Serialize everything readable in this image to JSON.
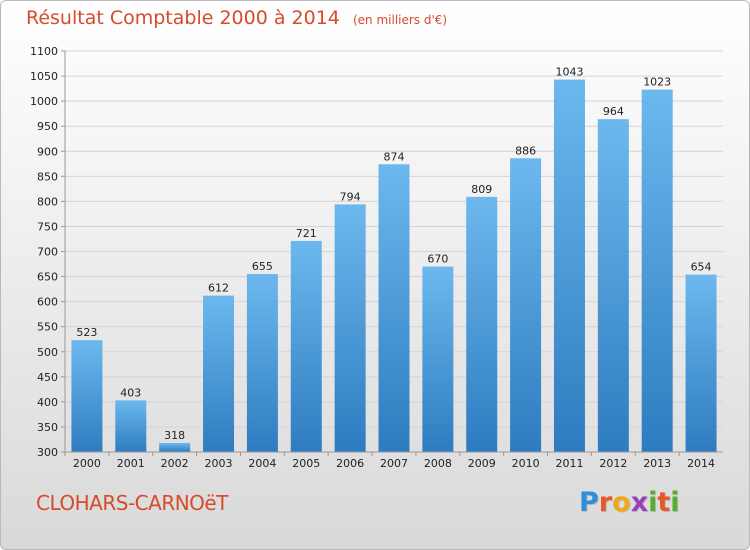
{
  "title": "Résultat Comptable 2000 à 2014",
  "subtitle": "(en milliers d'€)",
  "commune": "CLOHARS-CARNOëT",
  "logo": {
    "text": "Proxiti",
    "letters": [
      "P",
      "r",
      "o",
      "x",
      "i",
      "t",
      "i"
    ],
    "colors": [
      "#2e8fd6",
      "#e8562a",
      "#f0a818",
      "#9a3fb8",
      "#55b030",
      "#e8562a",
      "#55b030"
    ]
  },
  "colors": {
    "bar_light": "#6cb8ee",
    "bar_dark": "#2e7cc0",
    "title": "#d64b2a"
  },
  "chart_data": {
    "type": "bar",
    "title": "Résultat Comptable 2000 à 2014",
    "subtitle": "(en milliers d'€)",
    "categories": [
      "2000",
      "2001",
      "2002",
      "2003",
      "2004",
      "2005",
      "2006",
      "2007",
      "2008",
      "2009",
      "2010",
      "2011",
      "2012",
      "2013",
      "2014"
    ],
    "values": [
      523,
      403,
      318,
      612,
      655,
      721,
      794,
      874,
      670,
      809,
      886,
      1043,
      964,
      1023,
      654
    ],
    "ylim": [
      300,
      1100
    ],
    "yticks": [
      300,
      350,
      400,
      450,
      500,
      550,
      600,
      650,
      700,
      750,
      800,
      850,
      900,
      950,
      1000,
      1050,
      1100
    ],
    "grid": true,
    "legend": "none"
  }
}
